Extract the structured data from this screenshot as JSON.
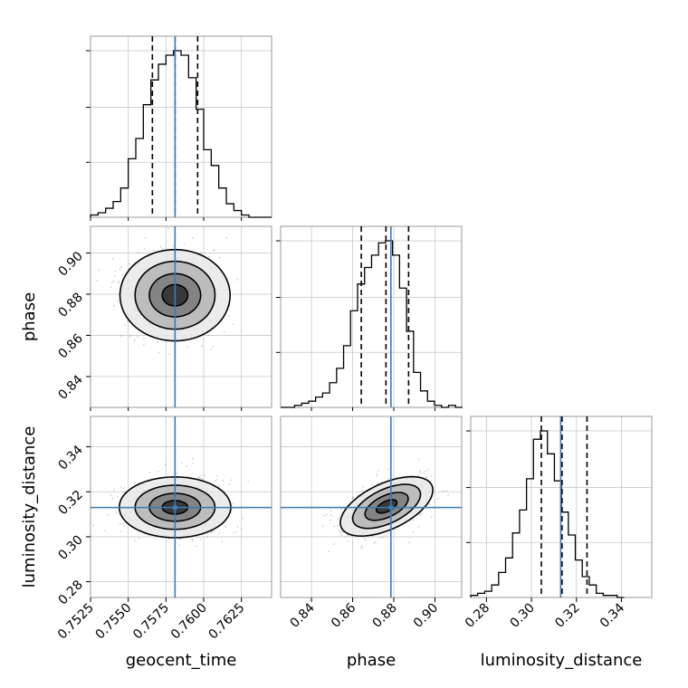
{
  "chart_data": {
    "type": "corner",
    "colors": {
      "truth": "#3a7ab5",
      "hist": "#000000",
      "grid": "#c8c8c8",
      "frame": "#999999"
    },
    "grid": true,
    "parameters": [
      {
        "name": "geocent_time",
        "label": "geocent_time",
        "range": [
          0.7525,
          0.7645
        ],
        "ticks": [
          0.7525,
          0.755,
          0.7575,
          0.76,
          0.7625
        ],
        "tick_labels": [
          "0.7525",
          "0.7550",
          "0.7575",
          "0.7600",
          "0.7625"
        ],
        "truth": 0.7581,
        "quantiles": [
          0.7566,
          0.7581,
          0.7596
        ]
      },
      {
        "name": "phase",
        "label": "phase",
        "range": [
          0.825,
          0.913
        ],
        "ticks": [
          0.84,
          0.86,
          0.88,
          0.9
        ],
        "tick_labels": [
          "0.84",
          "0.86",
          "0.88",
          "0.90"
        ],
        "truth": 0.8786,
        "quantiles": [
          0.8642,
          0.8762,
          0.8872
        ]
      },
      {
        "name": "luminosity_distance",
        "label": "luminosity_distance",
        "range": [
          0.273,
          0.3535
        ],
        "ticks": [
          0.28,
          0.3,
          0.32,
          0.34
        ],
        "tick_labels": [
          "0.28",
          "0.30",
          "0.32",
          "0.34"
        ],
        "truth": 0.313,
        "quantiles": [
          0.3044,
          0.3136,
          0.3247
        ]
      }
    ],
    "histograms": [
      {
        "param": "geocent_time",
        "edges_start": 0.7525,
        "bin_width": 0.0005,
        "values": [
          1,
          2,
          4,
          7,
          13,
          26,
          35,
          50,
          61,
          68,
          72,
          74,
          72,
          62,
          48,
          30,
          23,
          13,
          6,
          3,
          1,
          0,
          0,
          0
        ]
      },
      {
        "param": "phase",
        "edges_start": 0.825,
        "bin_width": 0.0034,
        "values": [
          0,
          0,
          1,
          2,
          3,
          5,
          7,
          12,
          19,
          30,
          47,
          60,
          68,
          74,
          80,
          81,
          74,
          58,
          37,
          17,
          8,
          3,
          1,
          0,
          1,
          0
        ]
      },
      {
        "param": "luminosity_distance",
        "edges_start": 0.273,
        "bin_width": 0.0031,
        "values": [
          1,
          2,
          3,
          6,
          12,
          19,
          31,
          42,
          57,
          76,
          80,
          69,
          56,
          41,
          30,
          18,
          10,
          6,
          2,
          1,
          1,
          0
        ]
      }
    ],
    "pairs": [
      {
        "x": "geocent_time",
        "y": "phase",
        "center": [
          0.7581,
          0.8795
        ],
        "contours": [
          {
            "level": "1",
            "sx": 0.00085,
            "sy": 0.0052,
            "rho": 0.0
          },
          {
            "level": "2",
            "sx": 0.0017,
            "sy": 0.0105,
            "rho": 0.0
          },
          {
            "level": "3",
            "sx": 0.00265,
            "sy": 0.0165,
            "rho": 0.0
          },
          {
            "level": "4",
            "sx": 0.00365,
            "sy": 0.0222,
            "rho": 0.0
          }
        ]
      },
      {
        "x": "geocent_time",
        "y": "luminosity_distance",
        "center": [
          0.7581,
          0.3131
        ],
        "contours": [
          {
            "level": "1",
            "sx": 0.00085,
            "sy": 0.003,
            "rho": 0.0
          },
          {
            "level": "2",
            "sx": 0.0017,
            "sy": 0.0062,
            "rho": 0.0
          },
          {
            "level": "3",
            "sx": 0.00265,
            "sy": 0.0098,
            "rho": 0.0
          },
          {
            "level": "4",
            "sx": 0.0037,
            "sy": 0.0135,
            "rho": 0.0
          }
        ]
      },
      {
        "x": "phase",
        "y": "luminosity_distance",
        "center": [
          0.8765,
          0.3135
        ],
        "contours": [
          {
            "level": "1",
            "sx": 0.005,
            "sy": 0.003,
            "rho": 0.55
          },
          {
            "level": "2",
            "sx": 0.0105,
            "sy": 0.0062,
            "rho": 0.55
          },
          {
            "level": "3",
            "sx": 0.0165,
            "sy": 0.0098,
            "rho": 0.55
          },
          {
            "level": "4",
            "sx": 0.0225,
            "sy": 0.0132,
            "rho": 0.55
          }
        ]
      }
    ]
  }
}
